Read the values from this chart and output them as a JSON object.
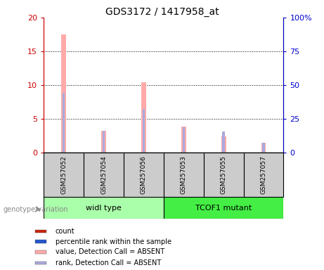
{
  "title": "GDS3172 / 1417958_at",
  "samples": [
    "GSM257052",
    "GSM257054",
    "GSM257056",
    "GSM257053",
    "GSM257055",
    "GSM257057"
  ],
  "groups": [
    "widl type",
    "TCOF1 mutant"
  ],
  "pink_bars": [
    17.5,
    3.2,
    10.4,
    3.9,
    2.4,
    1.5
  ],
  "blue_bars": [
    8.8,
    3.2,
    6.5,
    3.7,
    3.1,
    1.5
  ],
  "ylim_left": [
    0,
    20
  ],
  "ylim_right": [
    0,
    100
  ],
  "yticks_left": [
    0,
    5,
    10,
    15,
    20
  ],
  "yticks_right": [
    0,
    25,
    50,
    75,
    100
  ],
  "ytick_labels_left": [
    "0",
    "5",
    "10",
    "15",
    "20"
  ],
  "ytick_labels_right": [
    "0",
    "25",
    "50",
    "75",
    "100%"
  ],
  "left_axis_color": "#cc0000",
  "right_axis_color": "#0000cc",
  "pink_color": "#ffaaaa",
  "blue_color": "#aaaadd",
  "red_color": "#cc2200",
  "dark_blue_color": "#2255cc",
  "group1_color": "#aaffaa",
  "group2_color": "#44ee44",
  "sample_box_color": "#cccccc",
  "legend_items": [
    {
      "label": "count",
      "color": "#cc2200"
    },
    {
      "label": "percentile rank within the sample",
      "color": "#2255cc"
    },
    {
      "label": "value, Detection Call = ABSENT",
      "color": "#ffaaaa"
    },
    {
      "label": "rank, Detection Call = ABSENT",
      "color": "#aaaadd"
    }
  ],
  "genotype_label": "genotype/variation"
}
